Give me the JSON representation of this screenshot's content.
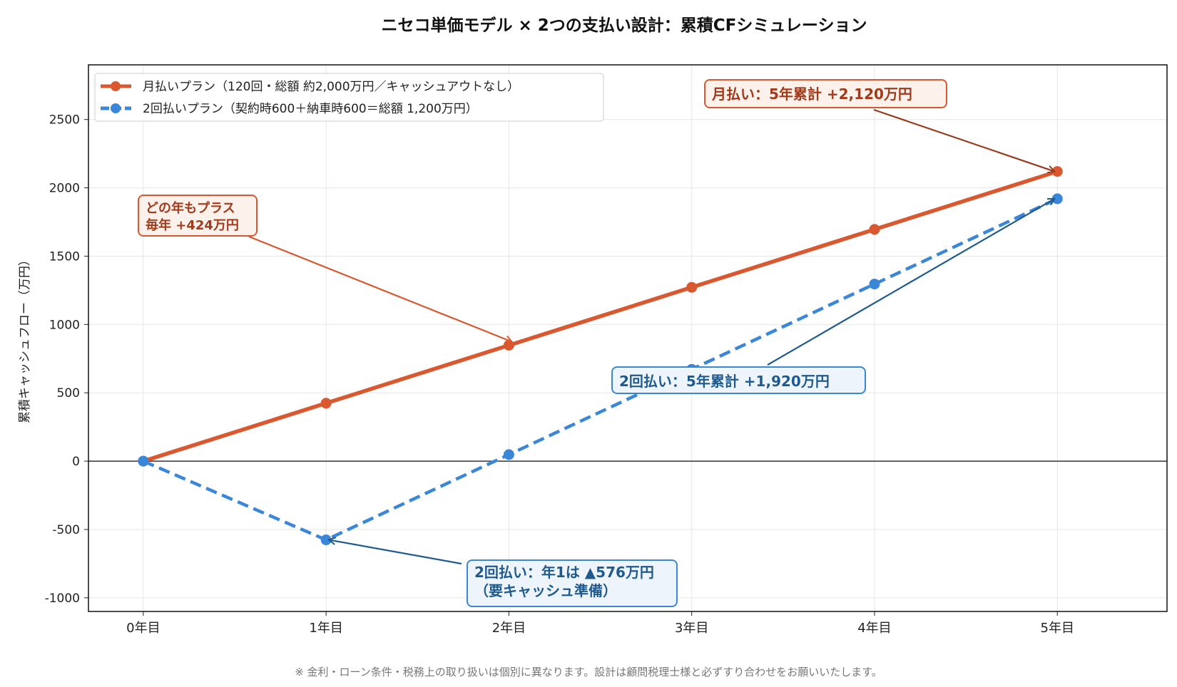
{
  "chart_data": {
    "type": "line",
    "title": "ニセコ単価モデル × 2つの支払い設計：累積CFシミュレーション",
    "xlabel": "",
    "ylabel": "累積キャッシュフロー（万円）",
    "categories": [
      "0年目",
      "1年目",
      "2年目",
      "3年目",
      "4年目",
      "5年目"
    ],
    "x": [
      0,
      1,
      2,
      3,
      4,
      5
    ],
    "xlim": [
      -0.3,
      5.6
    ],
    "ylim": [
      -1100,
      2900
    ],
    "yticks": [
      -1000,
      -500,
      0,
      500,
      1000,
      1500,
      2000,
      2500
    ],
    "grid": true,
    "legend_placement": "top-left",
    "series": [
      {
        "name": "月払いプラン（120回・総額 約2,000万円／キャッシュアウトなし）",
        "values": [
          0,
          424,
          848,
          1272,
          1696,
          2120
        ],
        "color": "#d9582f",
        "style": "solid"
      },
      {
        "name": "2回払いプラン（契約時600＋納車時600＝総額 1,200万円）",
        "values": [
          0,
          -576,
          48,
          672,
          1296,
          1920
        ],
        "color": "#3a86d8",
        "style": "dashed"
      }
    ],
    "annotations": [
      {
        "id": "monthly_total",
        "lines": [
          "月払い：5年累計  +2,120万円"
        ],
        "target": [
          5,
          2120
        ],
        "color": "#a23a1a",
        "border": "#d9582f",
        "bg": "#fdf1ec"
      },
      {
        "id": "monthly_yearly",
        "lines": [
          "どの年もプラス",
          "毎年 +424万円"
        ],
        "target": [
          2,
          848
        ],
        "color": "#a23a1a",
        "border": "#d9582f",
        "bg": "#fdf1ec"
      },
      {
        "id": "twopay_total",
        "lines": [
          "2回払い：5年累計  +1,920万円"
        ],
        "target": [
          5,
          1920
        ],
        "color": "#1f5a8f",
        "border": "#3a86d8",
        "bg": "#edf4fb"
      },
      {
        "id": "twopay_year1",
        "lines": [
          "2回払い：年1は ▲576万円",
          "（要キャッシュ準備）"
        ],
        "target": [
          1,
          -576
        ],
        "color": "#1f5a8f",
        "border": "#3a86d8",
        "bg": "#edf4fb"
      }
    ],
    "footnote": "※ 金利・ローン条件・税務上の取り扱いは個別に異なります。設計は顧問税理士様と必ずすり合わせをお願いいたします。"
  }
}
